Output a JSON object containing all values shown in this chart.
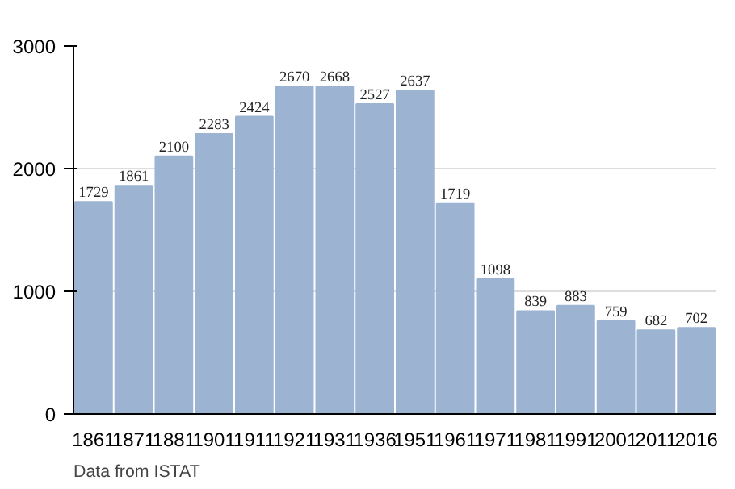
{
  "chart_data": {
    "type": "bar",
    "categories": [
      "1861",
      "1871",
      "1881",
      "1901",
      "1911",
      "1921",
      "1931",
      "1936",
      "1951",
      "1961",
      "1971",
      "1981",
      "1991",
      "2001",
      "2011",
      "2016"
    ],
    "values": [
      1729,
      1861,
      2100,
      2283,
      2424,
      2670,
      2668,
      2527,
      2637,
      1719,
      1098,
      839,
      883,
      759,
      682,
      702
    ],
    "color": "#9cb4d2",
    "ylim": [
      0,
      3000
    ],
    "yticks": [
      0,
      1000,
      2000,
      3000
    ],
    "grid": "y",
    "data_labels": true,
    "annotations": [
      "Data from ISTAT"
    ]
  }
}
